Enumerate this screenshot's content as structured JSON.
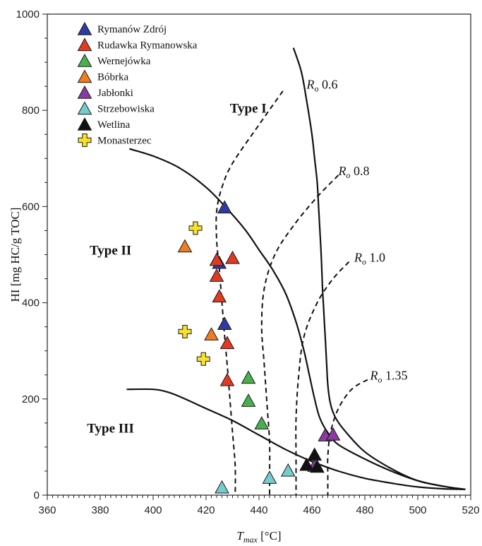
{
  "chart_data": {
    "type": "scatter",
    "title": "",
    "xlabel_main": "T",
    "xlabel_sub": "max",
    "xlabel_unit": " [°C]",
    "ylabel": "HI [mg HC/g TOC]",
    "xlim": [
      360,
      520
    ],
    "ylim": [
      0,
      1000
    ],
    "x_ticks": [
      360,
      380,
      400,
      420,
      440,
      460,
      480,
      500,
      520
    ],
    "y_ticks": [
      0,
      200,
      400,
      600,
      800,
      1000
    ],
    "grid": false,
    "legend_position": "top-left",
    "type_labels": [
      {
        "text": "Type I",
        "x": 429,
        "y": 795
      },
      {
        "text": "Type II",
        "x": 376,
        "y": 500
      },
      {
        "text": "Type III",
        "x": 375,
        "y": 130
      }
    ],
    "ro_labels": [
      {
        "prefix": "R",
        "sub": "o",
        "value": " 0.6",
        "x": 458,
        "y": 845
      },
      {
        "prefix": "R",
        "sub": "o",
        "value": " 0.8",
        "x": 470,
        "y": 665
      },
      {
        "prefix": "R",
        "sub": "o",
        "value": " 1.0",
        "x": 476,
        "y": 485
      },
      {
        "prefix": "R",
        "sub": "o",
        "value": " 1.35",
        "x": 482,
        "y": 240
      }
    ],
    "curves": [
      {
        "name": "Type I",
        "style": "solid",
        "points": [
          [
            453,
            930
          ],
          [
            456,
            880
          ],
          [
            458,
            820
          ],
          [
            460,
            750
          ],
          [
            461,
            700
          ],
          [
            462,
            650
          ],
          [
            462.5,
            600
          ],
          [
            463,
            550
          ],
          [
            463.5,
            500
          ],
          [
            464,
            430
          ],
          [
            464.5,
            380
          ],
          [
            465,
            330
          ],
          [
            465.5,
            280
          ],
          [
            466,
            230
          ],
          [
            467,
            190
          ],
          [
            469,
            160
          ],
          [
            473,
            130
          ],
          [
            480,
            90
          ],
          [
            490,
            55
          ],
          [
            500,
            30
          ],
          [
            510,
            18
          ],
          [
            518,
            12
          ]
        ]
      },
      {
        "name": "Type II",
        "style": "solid",
        "points": [
          [
            391,
            720
          ],
          [
            400,
            705
          ],
          [
            410,
            680
          ],
          [
            420,
            640
          ],
          [
            428,
            595
          ],
          [
            435,
            550
          ],
          [
            440,
            510
          ],
          [
            445,
            470
          ],
          [
            450,
            420
          ],
          [
            454,
            360
          ],
          [
            457,
            300
          ],
          [
            459,
            250
          ],
          [
            461,
            200
          ],
          [
            463,
            160
          ],
          [
            466,
            130
          ],
          [
            470,
            105
          ],
          [
            480,
            75
          ],
          [
            490,
            50
          ],
          [
            500,
            30
          ],
          [
            510,
            18
          ],
          [
            518,
            12
          ]
        ]
      },
      {
        "name": "Type III",
        "style": "solid",
        "points": [
          [
            390,
            220
          ],
          [
            400,
            220
          ],
          [
            405,
            215
          ],
          [
            410,
            205
          ],
          [
            420,
            180
          ],
          [
            430,
            155
          ],
          [
            440,
            125
          ],
          [
            450,
            95
          ],
          [
            460,
            70
          ],
          [
            470,
            50
          ],
          [
            480,
            35
          ],
          [
            490,
            25
          ],
          [
            500,
            17
          ],
          [
            510,
            13
          ],
          [
            518,
            12
          ]
        ]
      },
      {
        "name": "Ro 0.6",
        "style": "dashed",
        "points": [
          [
            449,
            840
          ],
          [
            440,
            770
          ],
          [
            430,
            690
          ],
          [
            426,
            640
          ],
          [
            424,
            590
          ],
          [
            424,
            530
          ],
          [
            425,
            470
          ],
          [
            426,
            400
          ],
          [
            427,
            330
          ],
          [
            428,
            270
          ],
          [
            429,
            200
          ],
          [
            430,
            130
          ],
          [
            431,
            60
          ],
          [
            431,
            0
          ]
        ]
      },
      {
        "name": "Ro 0.8",
        "style": "dashed",
        "points": [
          [
            470,
            665
          ],
          [
            462,
            620
          ],
          [
            453,
            560
          ],
          [
            446,
            500
          ],
          [
            442,
            430
          ],
          [
            441,
            350
          ],
          [
            442,
            270
          ],
          [
            443,
            190
          ],
          [
            444,
            110
          ],
          [
            444,
            40
          ],
          [
            444,
            0
          ]
        ]
      },
      {
        "name": "Ro 1.0",
        "style": "dashed",
        "points": [
          [
            474,
            485
          ],
          [
            468,
            450
          ],
          [
            462,
            400
          ],
          [
            457,
            330
          ],
          [
            455,
            250
          ],
          [
            454,
            160
          ],
          [
            454,
            80
          ],
          [
            454,
            30
          ],
          [
            454,
            0
          ]
        ]
      },
      {
        "name": "Ro 1.35",
        "style": "dashed",
        "points": [
          [
            481,
            240
          ],
          [
            475,
            220
          ],
          [
            470,
            180
          ],
          [
            467,
            130
          ],
          [
            466,
            80
          ],
          [
            466,
            40
          ],
          [
            466,
            0
          ]
        ]
      }
    ],
    "series": [
      {
        "name": "Rymanów Zdrój",
        "marker": "triangle",
        "color": "#2f3aa3",
        "points": [
          [
            427,
            597
          ],
          [
            425,
            482
          ],
          [
            427,
            355
          ]
        ]
      },
      {
        "name": "Rudawka Rymanowska",
        "marker": "triangle",
        "color": "#e03a22",
        "points": [
          [
            424,
            488
          ],
          [
            430,
            492
          ],
          [
            424,
            455
          ],
          [
            425,
            412
          ],
          [
            428,
            315
          ],
          [
            428,
            238
          ]
        ]
      },
      {
        "name": "Wernejówka",
        "marker": "triangle",
        "color": "#47b24c",
        "points": [
          [
            436,
            243
          ],
          [
            436,
            195
          ],
          [
            441,
            148
          ]
        ]
      },
      {
        "name": "Bóbrka",
        "marker": "triangle",
        "color": "#ef7d22",
        "points": [
          [
            412,
            516
          ],
          [
            422,
            333
          ]
        ]
      },
      {
        "name": "Jabłonki",
        "marker": "triangle",
        "color": "#8b3aa1",
        "points": [
          [
            465,
            123
          ],
          [
            468,
            125
          ],
          [
            461,
            60
          ]
        ]
      },
      {
        "name": "Strzebowiska",
        "marker": "triangle",
        "color": "#74cccd",
        "points": [
          [
            426,
            15
          ],
          [
            444,
            35
          ],
          [
            451,
            50
          ]
        ]
      },
      {
        "name": "Wetlina",
        "marker": "triangle",
        "color": "#111111",
        "points": [
          [
            461,
            83
          ],
          [
            458,
            62
          ],
          [
            462,
            58
          ]
        ]
      },
      {
        "name": "Monasterzec",
        "marker": "cross",
        "color": "#f5e12a",
        "points": [
          [
            416,
            555
          ],
          [
            412,
            340
          ],
          [
            419,
            283
          ]
        ]
      }
    ]
  }
}
